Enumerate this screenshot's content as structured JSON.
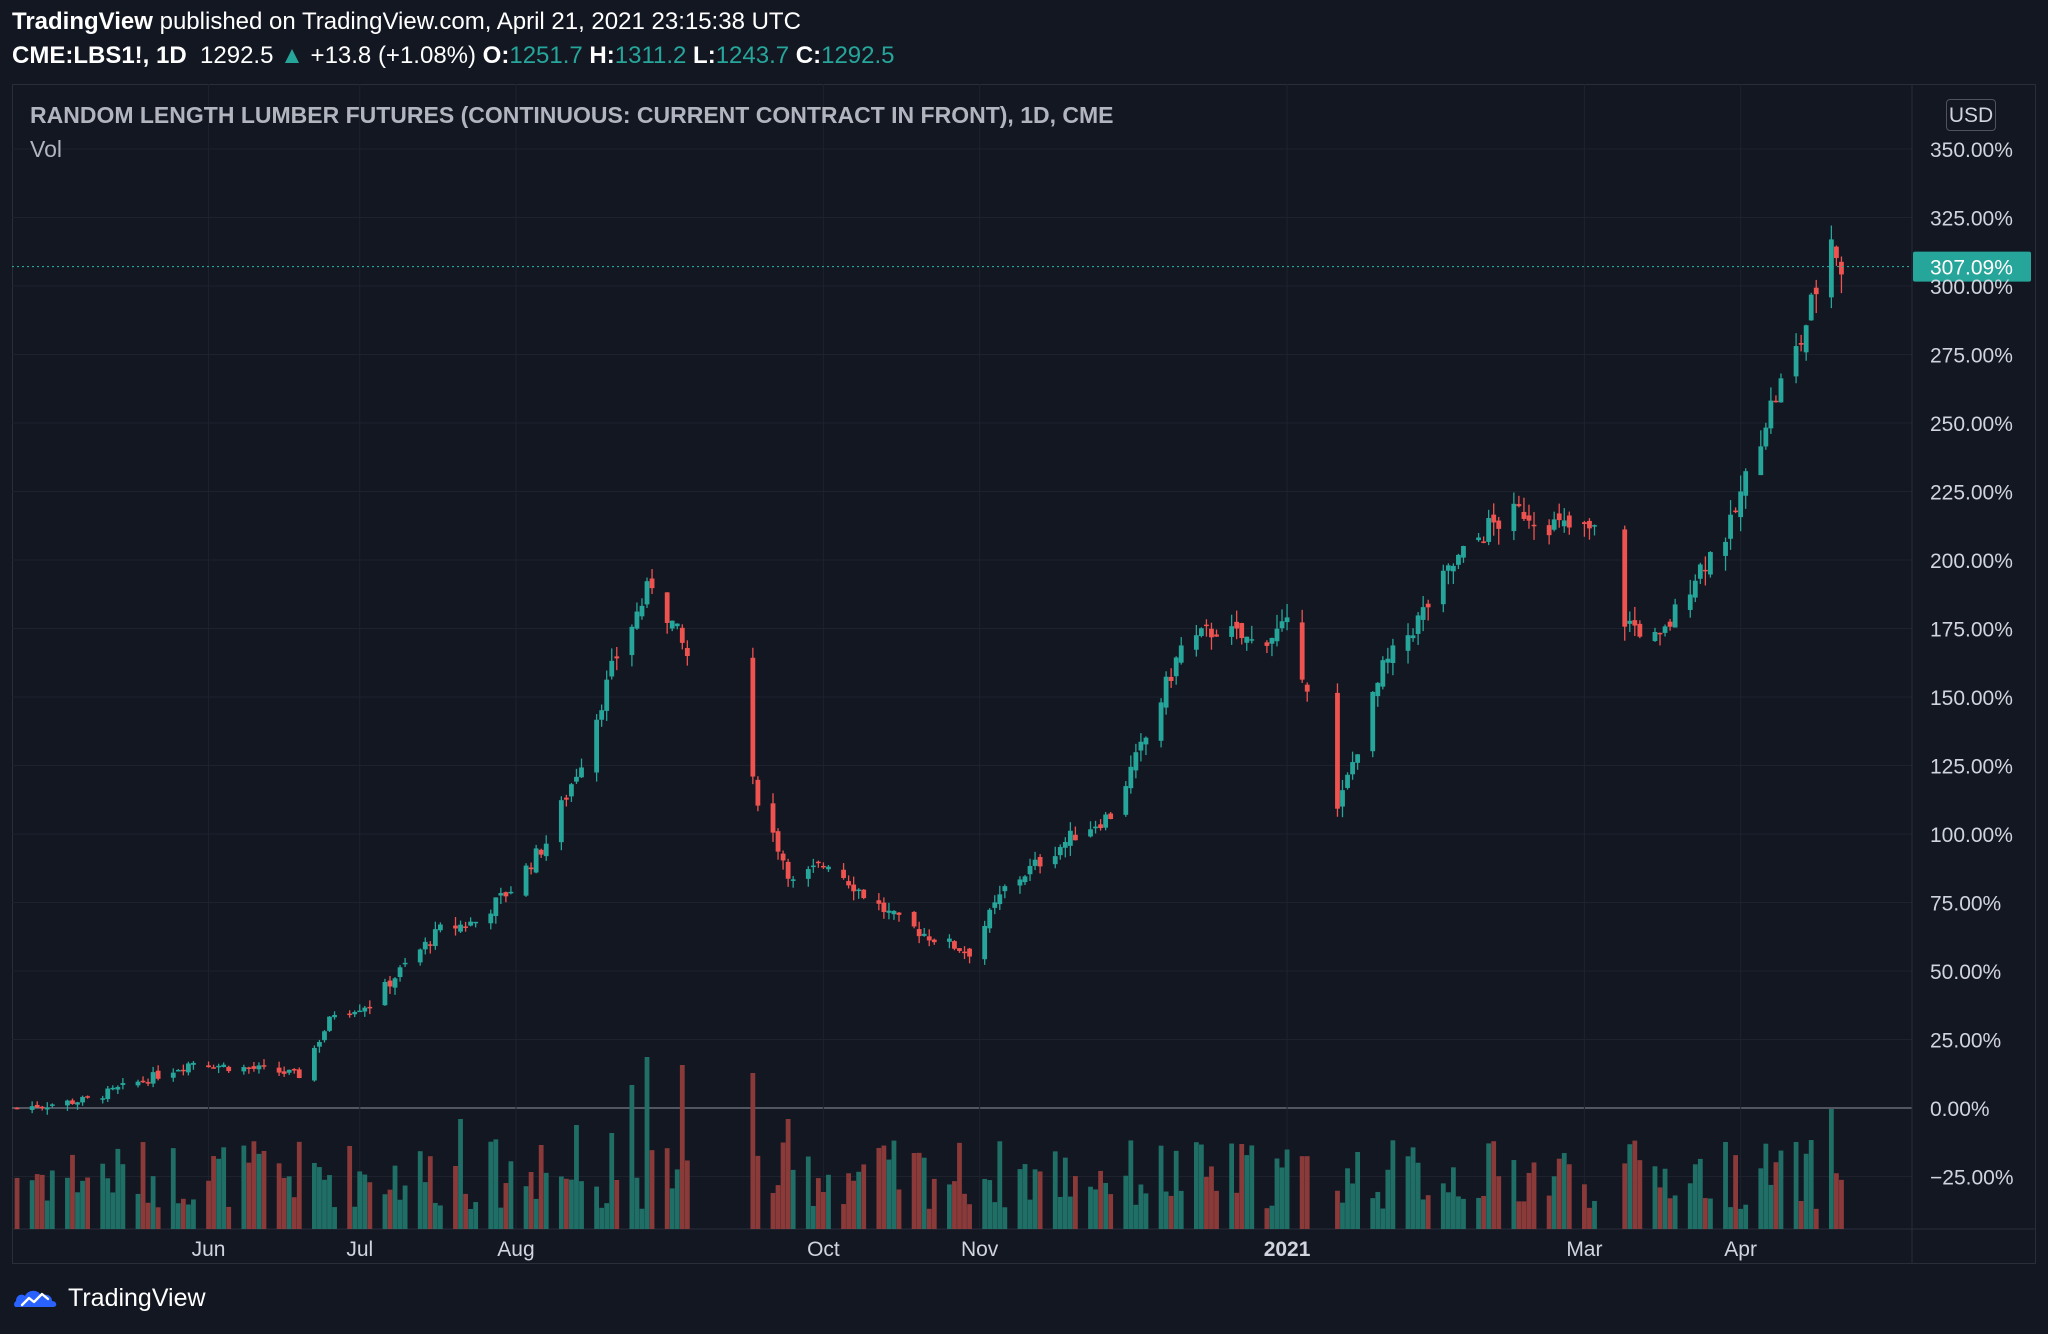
{
  "header": {
    "publisher": "TradingView",
    "published_text": "published on TradingView.com, April 21, 2021 23:15:38 UTC",
    "symbol": "CME:LBS1!, 1D",
    "last": "1292.5",
    "up_arrow": "▲",
    "change": "+13.8 (+1.08%)",
    "o_label": "O:",
    "o_value": "1251.7",
    "h_label": "H:",
    "h_value": "1311.2",
    "l_label": "L:",
    "l_value": "1243.7",
    "c_label": "C:",
    "c_value": "1292.5"
  },
  "pane": {
    "title": "RANDOM LENGTH LUMBER FUTURES (CONTINUOUS: CURRENT CONTRACT IN FRONT), 1D, CME",
    "volume_label": "Vol",
    "currency_button": "USD",
    "last_value_label": "307.09%"
  },
  "footer": {
    "brand": "TradingView",
    "logo_icon": "tradingview-logo-icon"
  },
  "colors": {
    "background": "#131722",
    "grid": "#1e222d",
    "up": "#26a69a",
    "down": "#ef5350",
    "volume_up": "#1f6f67",
    "volume_down": "#8b3a3a",
    "axis_text": "#d1d4dc"
  },
  "chart_data": {
    "type": "candlestick",
    "y_axis": {
      "unit": "percent change",
      "ticks": [
        "350.00%",
        "325.00%",
        "300.00%",
        "275.00%",
        "250.00%",
        "225.00%",
        "200.00%",
        "175.00%",
        "150.00%",
        "125.00%",
        "100.00%",
        "75.00%",
        "50.00%",
        "25.00%",
        "0.00%",
        "−25.00%"
      ],
      "range": [
        -30,
        355
      ],
      "zero_line": 0,
      "last_value": 307.09
    },
    "x_axis": {
      "ticks": [
        {
          "label": "Jun",
          "date": "2020-06-01"
        },
        {
          "label": "Jul",
          "date": "2020-07-01"
        },
        {
          "label": "Aug",
          "date": "2020-08-01"
        },
        {
          "label": "Oct",
          "date": "2020-10-01"
        },
        {
          "label": "Nov",
          "date": "2020-11-01"
        },
        {
          "label": "2021",
          "date": "2021-01-01",
          "bold": true
        },
        {
          "label": "Mar",
          "date": "2021-03-01"
        },
        {
          "label": "Apr",
          "date": "2021-04-01"
        }
      ],
      "range": [
        "2020-04-23",
        "2021-05-05"
      ]
    },
    "grid": true,
    "series": [
      {
        "name": "",
        "anchor_points": [
          [
            "2020-04-24",
            0
          ],
          [
            "2020-05-08",
            3
          ],
          [
            "2020-05-22",
            12
          ],
          [
            "2020-05-29",
            17
          ],
          [
            "2020-06-05",
            15
          ],
          [
            "2020-06-12",
            14
          ],
          [
            "2020-06-19",
            12
          ],
          [
            "2020-06-26",
            35
          ],
          [
            "2020-07-03",
            38
          ],
          [
            "2020-07-10",
            52
          ],
          [
            "2020-07-17",
            65
          ],
          [
            "2020-07-24",
            68
          ],
          [
            "2020-07-31",
            80
          ],
          [
            "2020-08-07",
            97
          ],
          [
            "2020-08-14",
            127
          ],
          [
            "2020-08-21",
            165
          ],
          [
            "2020-08-28",
            192
          ],
          [
            "2020-09-04",
            165
          ],
          [
            "2020-09-11",
            190
          ],
          [
            "2020-09-17",
            118
          ],
          [
            "2020-09-25",
            82
          ],
          [
            "2020-10-02",
            90
          ],
          [
            "2020-10-09",
            78
          ],
          [
            "2020-10-16",
            68
          ],
          [
            "2020-10-23",
            62
          ],
          [
            "2020-10-30",
            57
          ],
          [
            "2020-11-06",
            80
          ],
          [
            "2020-11-13",
            90
          ],
          [
            "2020-11-20",
            100
          ],
          [
            "2020-11-27",
            107
          ],
          [
            "2020-12-04",
            135
          ],
          [
            "2020-12-11",
            168
          ],
          [
            "2020-12-18",
            175
          ],
          [
            "2020-12-25",
            170
          ],
          [
            "2021-01-01",
            175
          ],
          [
            "2021-01-05",
            155
          ],
          [
            "2021-01-11",
            108
          ],
          [
            "2021-01-15",
            132
          ],
          [
            "2021-01-20",
            160
          ],
          [
            "2021-01-27",
            178
          ],
          [
            "2021-02-03",
            198
          ],
          [
            "2021-02-10",
            212
          ],
          [
            "2021-02-17",
            218
          ],
          [
            "2021-02-24",
            212
          ],
          [
            "2021-03-03",
            210
          ],
          [
            "2021-03-09",
            178
          ],
          [
            "2021-03-16",
            170
          ],
          [
            "2021-03-23",
            195
          ],
          [
            "2021-03-30",
            212
          ],
          [
            "2021-04-06",
            252
          ],
          [
            "2021-04-13",
            280
          ],
          [
            "2021-04-19",
            318
          ],
          [
            "2021-04-21",
            307.09
          ]
        ],
        "gaps": [
          [
            "2020-09-05",
            "2020-09-16"
          ],
          [
            "2021-01-06",
            "2021-01-10"
          ],
          [
            "2021-03-04",
            "2021-03-08"
          ]
        ]
      }
    ],
    "volume_pane": {
      "name": "Vol",
      "spikes": [
        [
          "2020-07-21",
          0.55
        ],
        [
          "2020-08-06",
          0.42
        ],
        [
          "2020-08-13",
          0.52
        ],
        [
          "2020-08-20",
          0.48
        ],
        [
          "2020-08-24",
          0.72
        ],
        [
          "2020-08-27",
          0.86
        ],
        [
          "2020-09-03",
          0.82
        ],
        [
          "2020-09-17",
          0.78
        ],
        [
          "2020-09-24",
          0.55
        ],
        [
          "2021-04-19",
          0.6
        ]
      ]
    }
  }
}
